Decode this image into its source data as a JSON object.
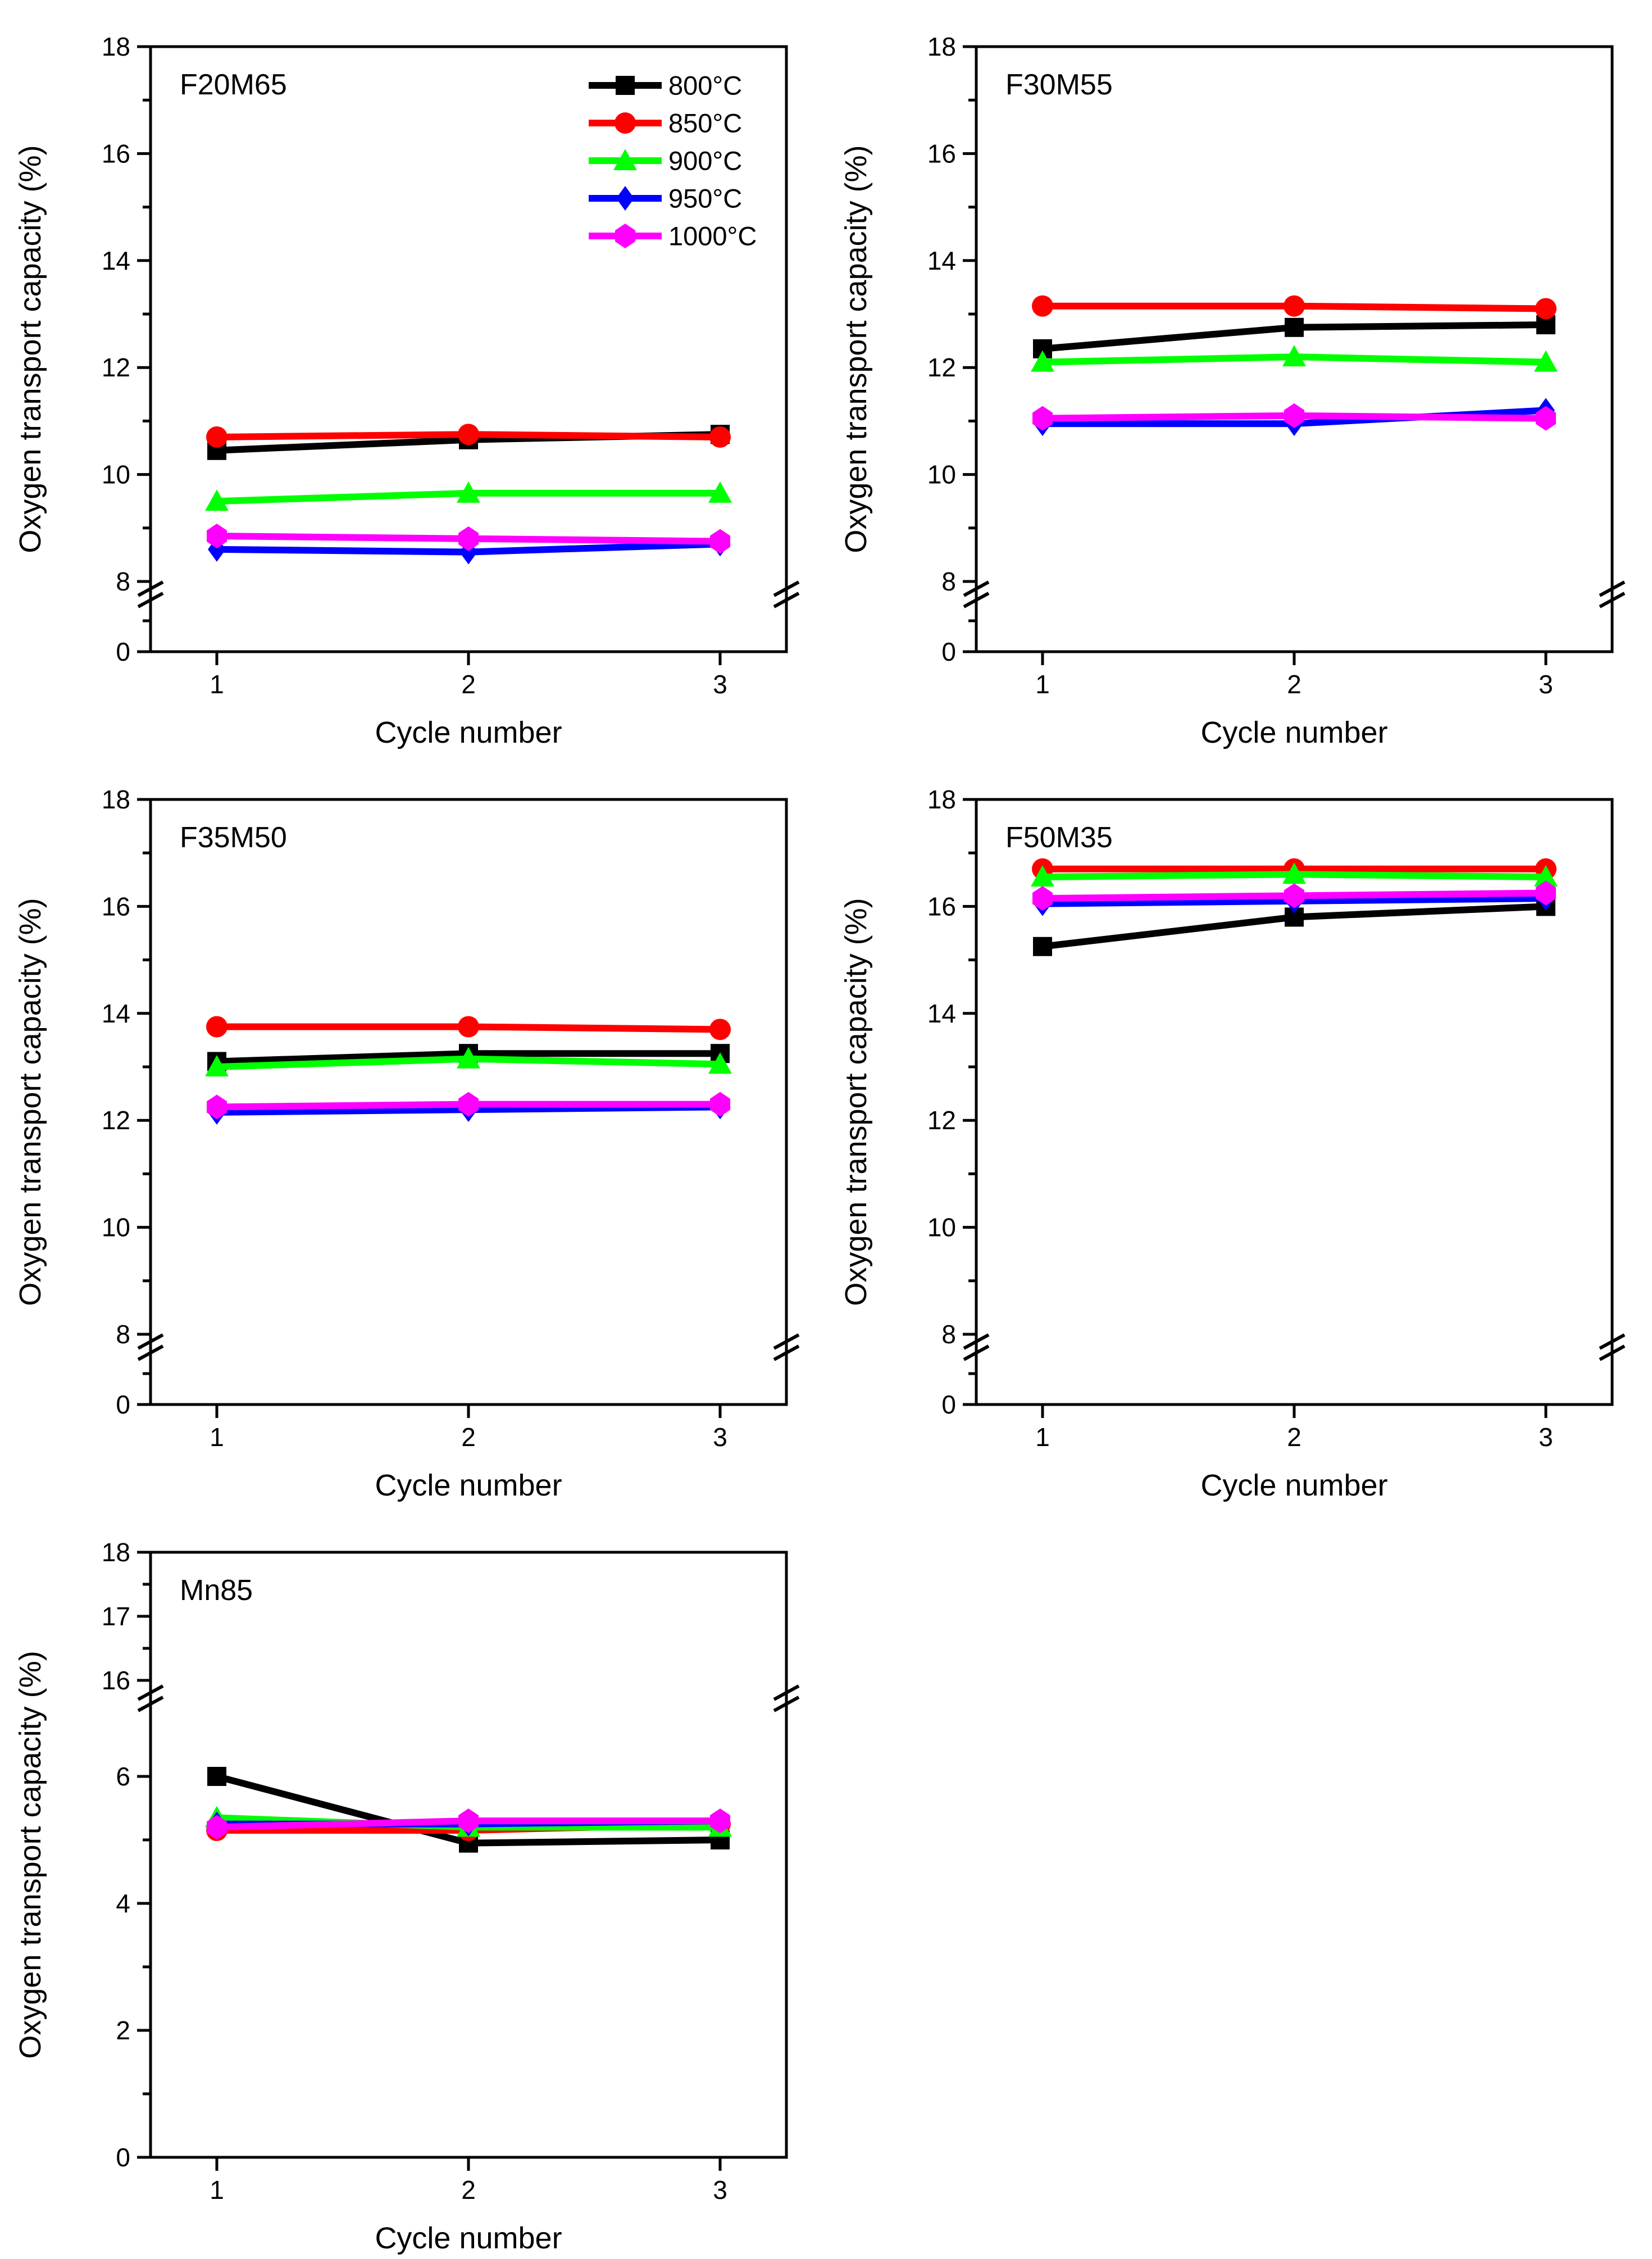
{
  "figure": {
    "ylabel": "Oxygen transport capacity (%)",
    "xlabel": "Cycle number",
    "background_color": "#ffffff",
    "axis_color": "#000000",
    "legend_position": "top-right-inside-first-panel",
    "series_meta": [
      {
        "name": "800°C",
        "color": "#000000",
        "marker": "square"
      },
      {
        "name": "850°C",
        "color": "#ff0000",
        "marker": "circle"
      },
      {
        "name": "900°C",
        "color": "#00ff00",
        "marker": "triangle"
      },
      {
        "name": "950°C",
        "color": "#0000ff",
        "marker": "diamond"
      },
      {
        "name": "1000°C",
        "color": "#ff00ff",
        "marker": "hexagon"
      }
    ]
  },
  "chart_data": [
    {
      "type": "line",
      "title": "F20M65",
      "xlabel": "Cycle number",
      "ylabel": "Oxygen transport capacity (%)",
      "x": [
        1,
        2,
        3
      ],
      "x_tick_labels": [
        "1",
        "2",
        "3"
      ],
      "axis_type": "broken-8-18",
      "y_tick_labels": [
        "18",
        "16",
        "14",
        "12",
        "10",
        "8",
        "0"
      ],
      "ylim_note": "y axis broken between 0 and 8; shown range 8-18 plus 0",
      "grid": false,
      "legend": true,
      "series": [
        {
          "name": "800°C",
          "values": [
            10.45,
            10.65,
            10.75
          ]
        },
        {
          "name": "850°C",
          "values": [
            10.7,
            10.75,
            10.7
          ]
        },
        {
          "name": "900°C",
          "values": [
            9.5,
            9.65,
            9.65
          ]
        },
        {
          "name": "950°C",
          "values": [
            8.6,
            8.55,
            8.7
          ]
        },
        {
          "name": "1000°C",
          "values": [
            8.85,
            8.8,
            8.75
          ]
        }
      ]
    },
    {
      "type": "line",
      "title": "F30M55",
      "xlabel": "Cycle number",
      "ylabel": "Oxygen transport capacity (%)",
      "x": [
        1,
        2,
        3
      ],
      "x_tick_labels": [
        "1",
        "2",
        "3"
      ],
      "axis_type": "broken-8-18",
      "y_tick_labels": [
        "18",
        "16",
        "14",
        "12",
        "10",
        "8",
        "0"
      ],
      "ylim_note": "y axis broken between 0 and 8; shown range 8-18 plus 0",
      "grid": false,
      "legend": false,
      "series": [
        {
          "name": "800°C",
          "values": [
            12.35,
            12.75,
            12.8
          ]
        },
        {
          "name": "850°C",
          "values": [
            13.15,
            13.15,
            13.1
          ]
        },
        {
          "name": "900°C",
          "values": [
            12.1,
            12.2,
            12.1
          ]
        },
        {
          "name": "950°C",
          "values": [
            10.95,
            10.95,
            11.2
          ]
        },
        {
          "name": "1000°C",
          "values": [
            11.05,
            11.1,
            11.05
          ]
        }
      ]
    },
    {
      "type": "line",
      "title": "F35M50",
      "xlabel": "Cycle number",
      "ylabel": "Oxygen transport capacity (%)",
      "x": [
        1,
        2,
        3
      ],
      "x_tick_labels": [
        "1",
        "2",
        "3"
      ],
      "axis_type": "broken-8-18",
      "y_tick_labels": [
        "18",
        "16",
        "14",
        "12",
        "10",
        "8",
        "0"
      ],
      "ylim_note": "y axis broken between 0 and 8; shown range 8-18 plus 0",
      "grid": false,
      "legend": false,
      "series": [
        {
          "name": "800°C",
          "values": [
            13.1,
            13.25,
            13.25
          ]
        },
        {
          "name": "850°C",
          "values": [
            13.75,
            13.75,
            13.7
          ]
        },
        {
          "name": "900°C",
          "values": [
            13.0,
            13.15,
            13.05
          ]
        },
        {
          "name": "950°C",
          "values": [
            12.15,
            12.2,
            12.25
          ]
        },
        {
          "name": "1000°C",
          "values": [
            12.25,
            12.3,
            12.3
          ]
        }
      ]
    },
    {
      "type": "line",
      "title": "F50M35",
      "xlabel": "Cycle number",
      "ylabel": "Oxygen transport capacity (%)",
      "x": [
        1,
        2,
        3
      ],
      "x_tick_labels": [
        "1",
        "2",
        "3"
      ],
      "axis_type": "broken-8-18",
      "y_tick_labels": [
        "18",
        "16",
        "14",
        "12",
        "10",
        "8",
        "0"
      ],
      "ylim_note": "y axis broken between 0 and 8; shown range 8-18 plus 0",
      "grid": false,
      "legend": false,
      "series": [
        {
          "name": "800°C",
          "values": [
            15.25,
            15.8,
            16.0
          ]
        },
        {
          "name": "850°C",
          "values": [
            16.7,
            16.7,
            16.7
          ]
        },
        {
          "name": "900°C",
          "values": [
            16.55,
            16.6,
            16.55
          ]
        },
        {
          "name": "950°C",
          "values": [
            16.05,
            16.1,
            16.15
          ]
        },
        {
          "name": "1000°C",
          "values": [
            16.15,
            16.2,
            16.25
          ]
        }
      ]
    },
    {
      "type": "line",
      "title": "Mn85",
      "xlabel": "Cycle number",
      "ylabel": "Oxygen transport capacity (%)",
      "x": [
        1,
        2,
        3
      ],
      "x_tick_labels": [
        "1",
        "2",
        "3"
      ],
      "axis_type": "broken-16-18",
      "y_tick_labels": [
        "18",
        "17",
        "16",
        "6",
        "4",
        "2",
        "0"
      ],
      "ylim_note": "y axis broken between 6 and 16; shown ranges 0-6 and 16-18",
      "grid": false,
      "legend": false,
      "series": [
        {
          "name": "800°C",
          "values": [
            6.0,
            4.95,
            5.0
          ]
        },
        {
          "name": "850°C",
          "values": [
            5.15,
            5.15,
            5.25
          ]
        },
        {
          "name": "900°C",
          "values": [
            5.35,
            5.2,
            5.2
          ]
        },
        {
          "name": "950°C",
          "values": [
            5.25,
            5.25,
            5.3
          ]
        },
        {
          "name": "1000°C",
          "values": [
            5.2,
            5.3,
            5.3
          ]
        }
      ]
    }
  ]
}
